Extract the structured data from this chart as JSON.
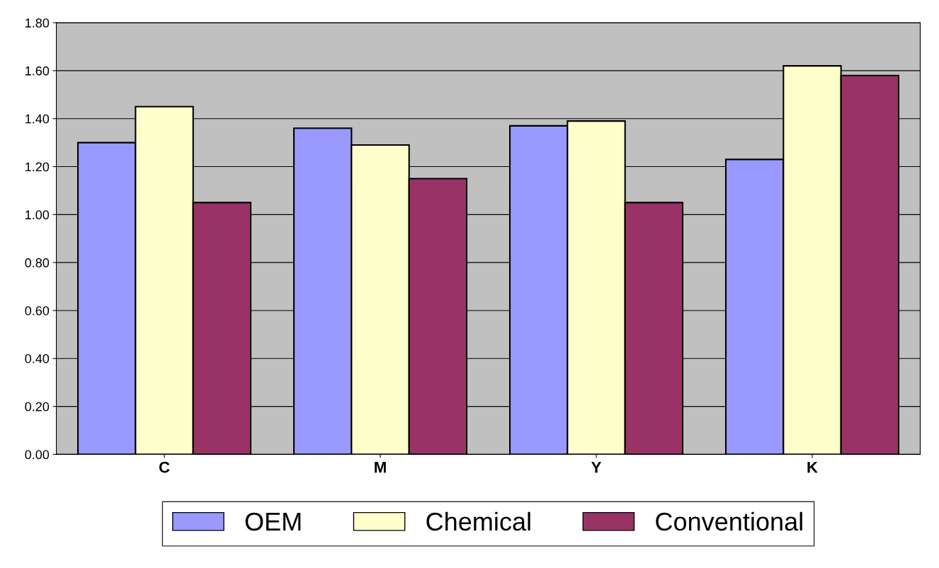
{
  "chart_data": {
    "type": "bar",
    "categories": [
      "C",
      "M",
      "Y",
      "K"
    ],
    "series": [
      {
        "name": "OEM",
        "color": "#9999ff",
        "values": [
          1.3,
          1.36,
          1.37,
          1.23
        ]
      },
      {
        "name": "Chemical",
        "color": "#ffffcc",
        "values": [
          1.45,
          1.29,
          1.39,
          1.62
        ]
      },
      {
        "name": "Conventional",
        "color": "#993366",
        "values": [
          1.05,
          1.15,
          1.05,
          1.58
        ]
      }
    ],
    "ylim": [
      0,
      1.8
    ],
    "yticks": [
      {
        "value": 0,
        "label": "0.00"
      },
      {
        "value": 0.2,
        "label": "0.20"
      },
      {
        "value": 0.4,
        "label": "0.40"
      },
      {
        "value": 0.6,
        "label": "0.60"
      },
      {
        "value": 0.8,
        "label": "0.80"
      },
      {
        "value": 1.0,
        "label": "1.00"
      },
      {
        "value": 1.2,
        "label": "1.20"
      },
      {
        "value": 1.4,
        "label": "1.40"
      },
      {
        "value": 1.6,
        "label": "1.60"
      },
      {
        "value": 1.8,
        "label": "1.80"
      }
    ],
    "grid": "y",
    "legend": "bottom"
  }
}
